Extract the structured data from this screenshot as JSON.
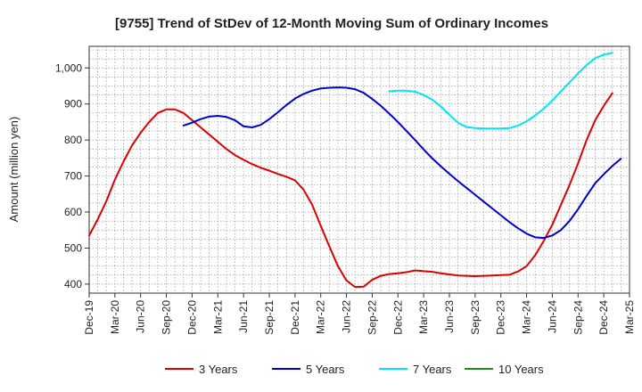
{
  "chart_data": {
    "type": "line",
    "title": "[9755]  Trend of StDev of 12-Month Moving Sum of Ordinary Incomes",
    "xlabel": "",
    "ylabel": "Amount (million yen)",
    "ylim": [
      375,
      1060
    ],
    "yticks": [
      400,
      500,
      600,
      700,
      800,
      900,
      1000
    ],
    "ytick_labels": [
      "400",
      "500",
      "600",
      "700",
      "800",
      "900",
      "1,000"
    ],
    "x_start": "Dec-19",
    "x_end": "Mar-25",
    "x_tick_labels": [
      "Dec-19",
      "Mar-20",
      "Jun-20",
      "Sep-20",
      "Dec-20",
      "Mar-21",
      "Jun-21",
      "Sep-21",
      "Dec-21",
      "Mar-22",
      "Jun-22",
      "Sep-22",
      "Dec-22",
      "Mar-23",
      "Jun-23",
      "Sep-23",
      "Dec-23",
      "Mar-24",
      "Jun-24",
      "Sep-24",
      "Dec-24",
      "Mar-25"
    ],
    "grid": true,
    "legend_position": "bottom",
    "series": [
      {
        "name": "3 Years",
        "color": "#dd0000",
        "start": "Dec-19",
        "values": [
          535,
          580,
          630,
          690,
          740,
          785,
          820,
          850,
          875,
          885,
          885,
          875,
          855,
          835,
          815,
          795,
          775,
          758,
          745,
          733,
          723,
          715,
          706,
          698,
          688,
          662,
          620,
          562,
          505,
          450,
          410,
          392,
          393,
          412,
          423,
          428,
          430,
          433,
          438,
          436,
          434,
          430,
          427,
          424,
          423,
          422,
          423,
          424,
          425,
          426,
          435,
          450,
          480,
          520,
          565,
          620,
          675,
          735,
          800,
          855,
          895,
          930
        ]
      },
      {
        "name": "5 Years",
        "color": "#0000cc",
        "start": "Nov-20",
        "values": [
          840,
          848,
          858,
          865,
          867,
          864,
          855,
          838,
          835,
          842,
          858,
          877,
          897,
          915,
          928,
          937,
          943,
          945,
          946,
          945,
          941,
          931,
          914,
          895,
          873,
          850,
          825,
          800,
          774,
          749,
          727,
          706,
          686,
          667,
          648,
          629,
          610,
          591,
          572,
          555,
          540,
          530,
          528,
          535,
          550,
          575,
          608,
          645,
          680,
          705,
          728,
          748
        ]
      },
      {
        "name": "7 Years",
        "color": "#00e5ee",
        "start": "Nov-22",
        "values": [
          935,
          937,
          937,
          934,
          925,
          912,
          893,
          870,
          848,
          836,
          833,
          832,
          832,
          832,
          833,
          840,
          852,
          868,
          887,
          910,
          935,
          960,
          985,
          1008,
          1027,
          1037,
          1042
        ]
      },
      {
        "name": "10 Years",
        "color": "#228b22",
        "start": "Dec-24",
        "values": []
      }
    ]
  }
}
